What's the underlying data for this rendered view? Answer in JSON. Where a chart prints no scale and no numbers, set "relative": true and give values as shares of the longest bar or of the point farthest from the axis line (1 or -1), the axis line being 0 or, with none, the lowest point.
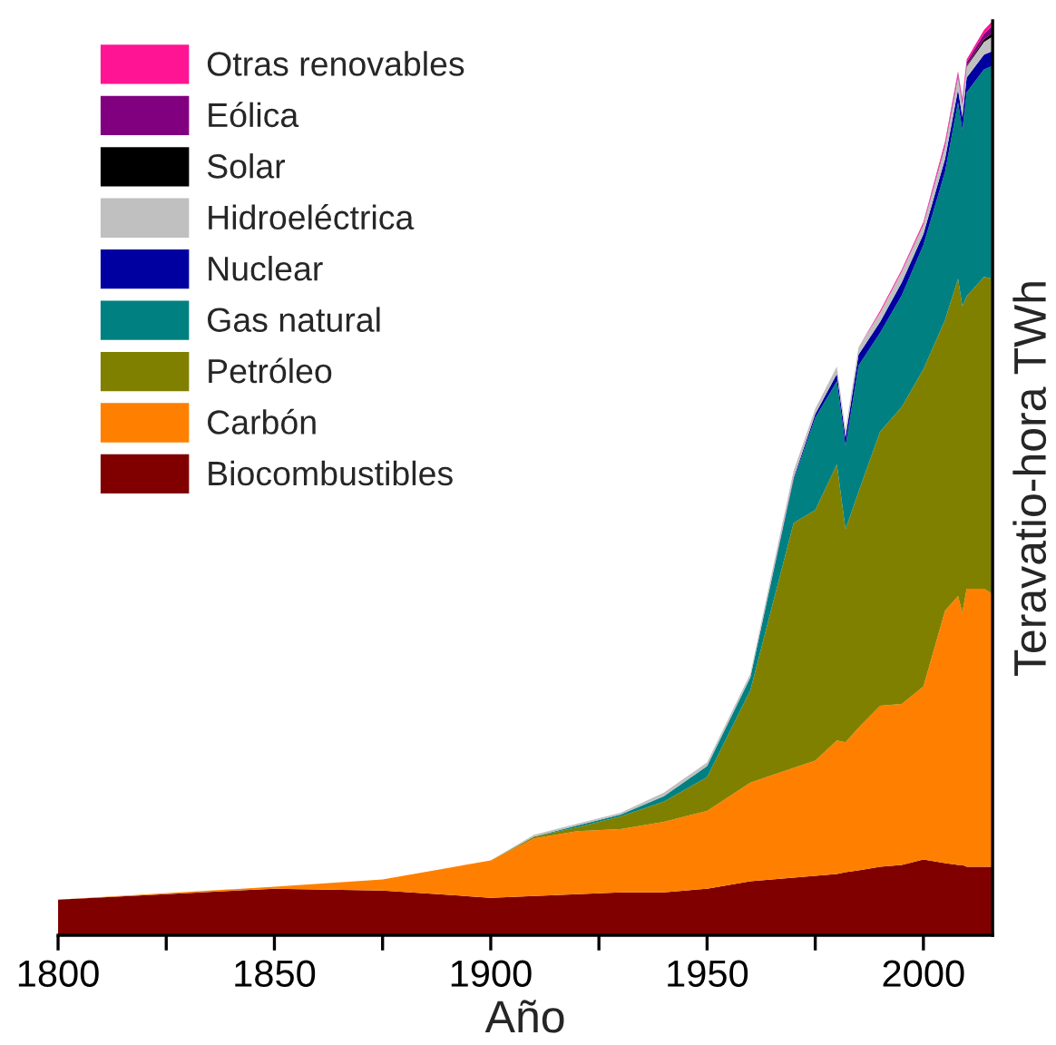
{
  "chart_data": {
    "type": "area",
    "stacked": true,
    "relative": true,
    "xlabel": "Año",
    "ylabel": "Teravatio-hora TWh",
    "x": [
      1800,
      1850,
      1875,
      1900,
      1910,
      1920,
      1930,
      1940,
      1950,
      1960,
      1970,
      1975,
      1980,
      1982,
      1985,
      1990,
      1995,
      2000,
      2005,
      2008,
      2009,
      2010,
      2014,
      2016
    ],
    "xlim": [
      1800,
      2016
    ],
    "xticks": [
      1800,
      {
        "value": 1825,
        "label": null
      },
      1850,
      {
        "value": 1875,
        "label": null
      },
      1900,
      {
        "value": 1925,
        "label": null
      },
      1950,
      {
        "value": 1975,
        "label": null
      },
      2000
    ],
    "legend": "top left",
    "grid": false,
    "series": [
      {
        "name": "Biocombustibles",
        "color": "#800000",
        "values": [
          0.039,
          0.051,
          0.049,
          0.041,
          0.043,
          0.045,
          0.047,
          0.047,
          0.051,
          0.059,
          0.063,
          0.065,
          0.067,
          0.069,
          0.071,
          0.075,
          0.077,
          0.083,
          0.079,
          0.077,
          0.077,
          0.075,
          0.075,
          0.075
        ]
      },
      {
        "name": "Carbón",
        "color": "#ff8000",
        "values": [
          0,
          0.002,
          0.012,
          0.041,
          0.063,
          0.069,
          0.069,
          0.077,
          0.085,
          0.108,
          0.12,
          0.126,
          0.146,
          0.142,
          0.156,
          0.176,
          0.176,
          0.189,
          0.276,
          0.294,
          0.276,
          0.304,
          0.304,
          0.298
        ]
      },
      {
        "name": "Petróleo",
        "color": "#808000",
        "values": [
          0,
          0,
          0,
          0,
          0.002,
          0.004,
          0.014,
          0.022,
          0.037,
          0.101,
          0.268,
          0.274,
          0.302,
          0.233,
          0.258,
          0.3,
          0.325,
          0.347,
          0.318,
          0.347,
          0.335,
          0.32,
          0.341,
          0.345
        ]
      },
      {
        "name": "Gas natural",
        "color": "#008080",
        "values": [
          0,
          0,
          0,
          0,
          0,
          0.002,
          0.002,
          0.006,
          0.012,
          0.014,
          0.047,
          0.101,
          0.091,
          0.091,
          0.138,
          0.108,
          0.122,
          0.136,
          0.162,
          0.193,
          0.193,
          0.223,
          0.227,
          0.233
        ]
      },
      {
        "name": "Nuclear",
        "color": "#0000a0",
        "values": [
          0,
          0,
          0,
          0,
          0,
          0,
          0,
          0,
          0,
          0,
          0.002,
          0.004,
          0.008,
          0.01,
          0.012,
          0.012,
          0.014,
          0.012,
          0.014,
          0.014,
          0.014,
          0.016,
          0.016,
          0.016
        ]
      },
      {
        "name": "Hidroeléctrica",
        "color": "#c0c0c0",
        "values": [
          0,
          0,
          0,
          0,
          0.002,
          0.002,
          0.002,
          0.004,
          0.004,
          0.004,
          0.008,
          0.006,
          0.008,
          0.008,
          0.008,
          0.01,
          0.012,
          0.01,
          0.014,
          0.014,
          0.014,
          0.012,
          0.014,
          0.016
        ]
      },
      {
        "name": "Solar",
        "color": "#000000",
        "values": [
          0,
          0,
          0,
          0,
          0,
          0,
          0,
          0,
          0,
          0,
          0,
          0,
          0,
          0,
          0,
          0,
          0,
          0,
          0,
          0,
          0,
          0.001,
          0.003,
          0.004
        ]
      },
      {
        "name": "Eólica",
        "color": "#800080",
        "values": [
          0,
          0,
          0,
          0,
          0,
          0,
          0,
          0,
          0,
          0,
          0,
          0,
          0,
          0,
          0,
          0,
          0,
          0.001,
          0.002,
          0.003,
          0.003,
          0.004,
          0.006,
          0.008
        ]
      },
      {
        "name": "Otras renovables",
        "color": "#ff1493",
        "values": [
          0,
          0,
          0,
          0,
          0,
          0,
          0,
          0,
          0,
          0,
          0,
          0,
          0,
          0,
          0,
          0.002,
          0.002,
          0.002,
          0.003,
          0.003,
          0.003,
          0.003,
          0.004,
          0.005
        ]
      }
    ]
  }
}
